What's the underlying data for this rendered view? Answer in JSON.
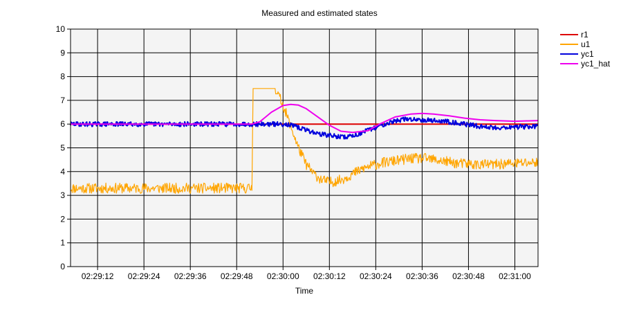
{
  "chart_data": {
    "type": "line",
    "title": "Measured and estimated states",
    "xlabel": "Time",
    "ylabel": "",
    "ylim": [
      0,
      10
    ],
    "yticks": [
      0,
      1,
      2,
      3,
      4,
      5,
      6,
      7,
      8,
      9,
      10
    ],
    "x_range_seconds": [
      0,
      121
    ],
    "xticks": [
      {
        "t": 7,
        "label": "02:29:12"
      },
      {
        "t": 19,
        "label": "02:29:24"
      },
      {
        "t": 31,
        "label": "02:29:36"
      },
      {
        "t": 43,
        "label": "02:29:48"
      },
      {
        "t": 55,
        "label": "02:30:00"
      },
      {
        "t": 67,
        "label": "02:30:12"
      },
      {
        "t": 79,
        "label": "02:30:24"
      },
      {
        "t": 91,
        "label": "02:30:36"
      },
      {
        "t": 103,
        "label": "02:30:48"
      },
      {
        "t": 115,
        "label": "02:31:00"
      }
    ],
    "grid": true,
    "legend": "right",
    "background": "#f4f4f4",
    "series": [
      {
        "name": "r1",
        "color": "#dd0000",
        "width": 2,
        "noise": 0,
        "points": [
          [
            0,
            6.0
          ],
          [
            121,
            6.0
          ]
        ]
      },
      {
        "name": "u1",
        "color": "#ffa500",
        "width": 1.2,
        "noise": 0.22,
        "seed": 11,
        "points": [
          [
            0,
            3.3
          ],
          [
            47,
            3.3
          ],
          [
            47.2,
            7.5
          ],
          [
            53,
            7.5
          ],
          [
            55,
            6.8
          ],
          [
            57,
            5.9
          ],
          [
            59,
            5.0
          ],
          [
            61,
            4.3
          ],
          [
            63,
            3.9
          ],
          [
            65,
            3.65
          ],
          [
            67,
            3.55
          ],
          [
            70,
            3.65
          ],
          [
            73,
            3.9
          ],
          [
            76,
            4.15
          ],
          [
            80,
            4.35
          ],
          [
            84,
            4.45
          ],
          [
            88,
            4.55
          ],
          [
            92,
            4.55
          ],
          [
            96,
            4.45
          ],
          [
            100,
            4.35
          ],
          [
            105,
            4.3
          ],
          [
            110,
            4.3
          ],
          [
            115,
            4.35
          ],
          [
            121,
            4.4
          ]
        ]
      },
      {
        "name": "yc1",
        "color": "#0000dd",
        "width": 2,
        "noise": 0.1,
        "seed": 29,
        "points": [
          [
            0,
            6.0
          ],
          [
            52,
            6.0
          ],
          [
            56,
            6.0
          ],
          [
            58,
            5.9
          ],
          [
            61,
            5.75
          ],
          [
            64,
            5.6
          ],
          [
            68,
            5.5
          ],
          [
            71,
            5.45
          ],
          [
            74,
            5.55
          ],
          [
            78,
            5.8
          ],
          [
            82,
            6.05
          ],
          [
            86,
            6.2
          ],
          [
            90,
            6.2
          ],
          [
            94,
            6.15
          ],
          [
            98,
            6.1
          ],
          [
            102,
            6.0
          ],
          [
            106,
            5.9
          ],
          [
            110,
            5.85
          ],
          [
            115,
            5.88
          ],
          [
            121,
            5.9
          ]
        ]
      },
      {
        "name": "yc1_hat",
        "color": "#ee00ee",
        "width": 2,
        "noise": 0,
        "points": [
          [
            0,
            6.0
          ],
          [
            47,
            6.0
          ],
          [
            49,
            6.1
          ],
          [
            52,
            6.5
          ],
          [
            55,
            6.78
          ],
          [
            57,
            6.83
          ],
          [
            59,
            6.8
          ],
          [
            61,
            6.65
          ],
          [
            64,
            6.3
          ],
          [
            67,
            5.95
          ],
          [
            70,
            5.7
          ],
          [
            73,
            5.65
          ],
          [
            77,
            5.72
          ],
          [
            80,
            6.0
          ],
          [
            84,
            6.3
          ],
          [
            88,
            6.42
          ],
          [
            91,
            6.45
          ],
          [
            94,
            6.42
          ],
          [
            98,
            6.35
          ],
          [
            102,
            6.25
          ],
          [
            106,
            6.18
          ],
          [
            110,
            6.15
          ],
          [
            115,
            6.12
          ],
          [
            121,
            6.15
          ]
        ]
      }
    ]
  }
}
